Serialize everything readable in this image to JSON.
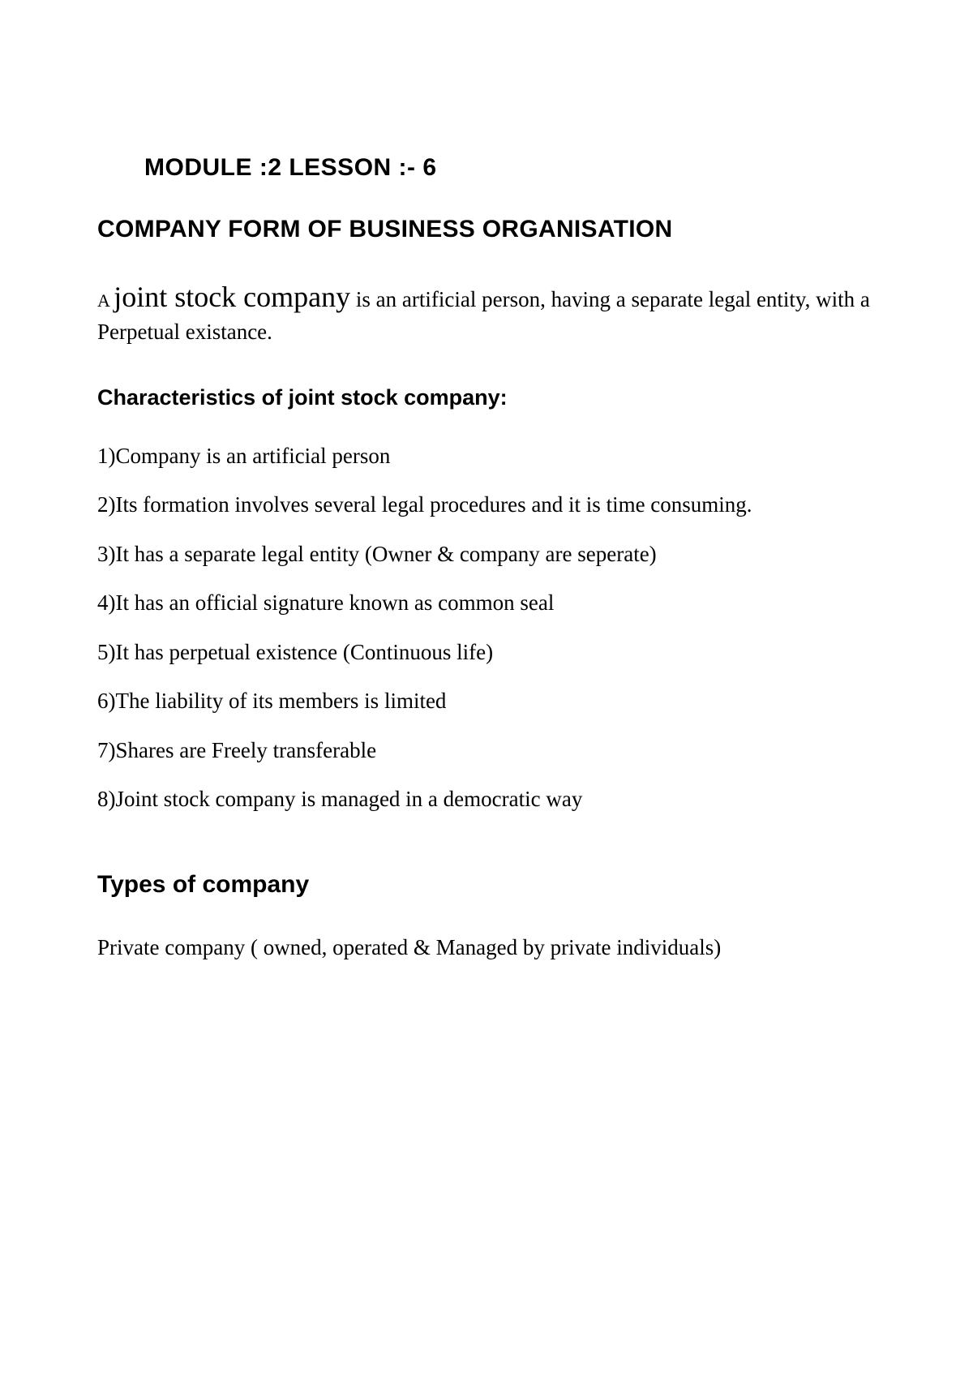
{
  "module_title": "MODULE :2  LESSON :- 6",
  "main_heading": "COMPANY FORM OF BUSINESS ORGANISATION",
  "intro": {
    "prefix": "A ",
    "emphasis": "joint stock company",
    "rest": " is an artificial person, having a separate legal entity, with a Perpetual existance."
  },
  "characteristics_heading": "Characteristics of joint stock company:",
  "characteristics": [
    "1)Company is an artificial person",
    "2)Its formation involves several legal procedures and it is time consuming.",
    "3)It has a separate legal entity (Owner & company are seperate)",
    "4)It has an official signature known as common seal",
    "5)It has perpetual existence (Continuous life)",
    "6)The liability of its members is limited",
    "7)Shares are Freely transferable",
    "8)Joint stock company is managed in a democratic way"
  ],
  "types_heading": "Types of company",
  "types_text": "Private company  ( owned, operated & Managed by private individuals)"
}
